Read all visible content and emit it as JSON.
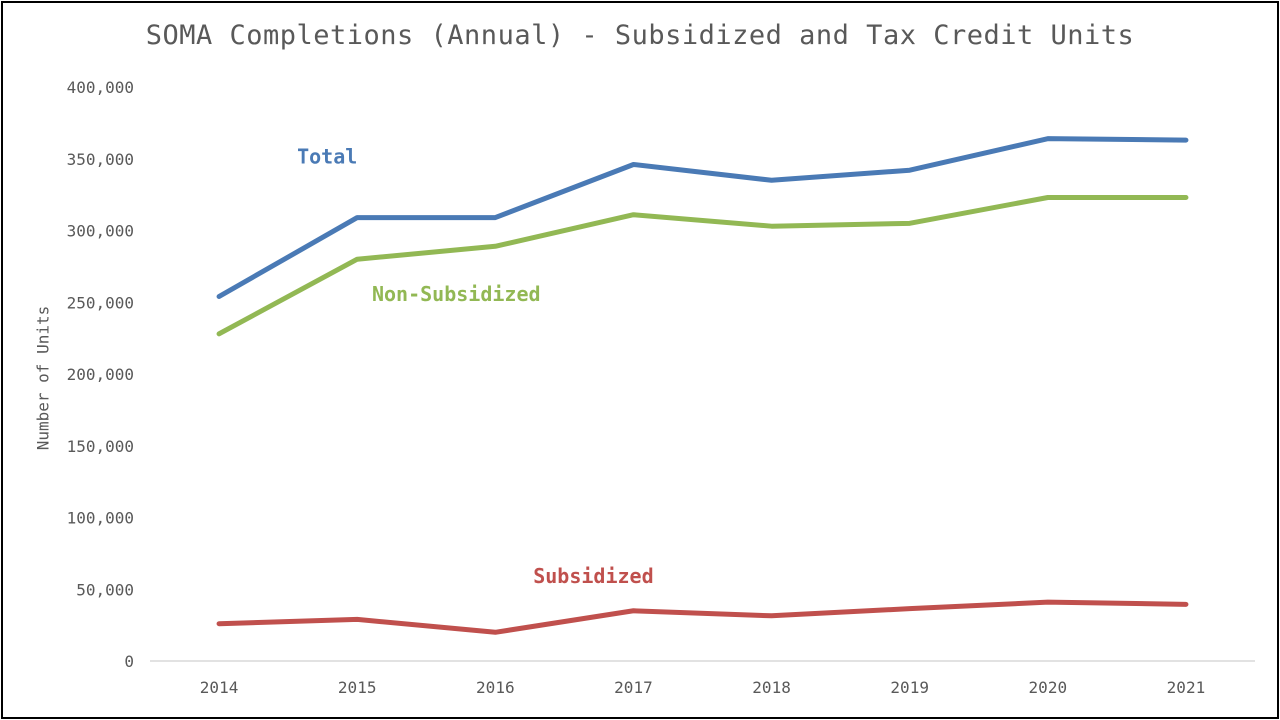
{
  "chart_data": {
    "type": "line",
    "title": "SOMA Completions (Annual) - Subsidized and Tax Credit Units",
    "ylabel": "Number of Units",
    "xlabel": "",
    "categories": [
      "2014",
      "2015",
      "2016",
      "2017",
      "2018",
      "2019",
      "2020",
      "2021"
    ],
    "ylim": [
      0,
      400000
    ],
    "yticks": [
      0,
      50000,
      100000,
      150000,
      200000,
      250000,
      300000,
      350000,
      400000
    ],
    "ytick_labels": [
      "0",
      "50,000",
      "100,000",
      "150,000",
      "200,000",
      "250,000",
      "300,000",
      "350,000",
      "400,000"
    ],
    "grid": false,
    "legend": "inline labels",
    "series": [
      {
        "name": "Total",
        "color": "#4a7ab5",
        "values": [
          254000,
          309000,
          309000,
          346000,
          335000,
          342000,
          364000,
          363000
        ]
      },
      {
        "name": "Non-Subsidized",
        "color": "#92b854",
        "values": [
          228000,
          280000,
          289000,
          311000,
          303000,
          305000,
          323000,
          323000
        ]
      },
      {
        "name": "Subsidized",
        "color": "#c0504d",
        "values": [
          26000,
          29000,
          20000,
          35000,
          31500,
          36500,
          41000,
          39500
        ]
      }
    ]
  }
}
